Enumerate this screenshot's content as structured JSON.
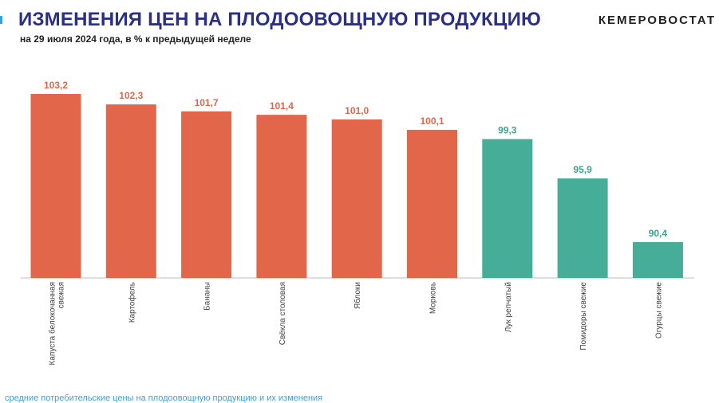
{
  "header": {
    "title": "ИЗМЕНЕНИЯ ЦЕН НА ПЛОДООВОЩНУЮ ПРОДУКЦИЮ",
    "subtitle": "на 29 июля 2024 года, в % к предыдущей неделе",
    "brand": "КЕМЕРОВОСТАТ"
  },
  "footer": {
    "text": "средние потребительские цены на плодоовощную продукцию и их изменения"
  },
  "colors": {
    "increase": "#e2664a",
    "decrease": "#45ad98",
    "increase_label": "#e2664a",
    "decrease_label": "#3aa58f",
    "title": "#2c2f86"
  },
  "chart_data": {
    "type": "bar",
    "title": "ИЗМЕНЕНИЯ ЦЕН НА ПЛОДООВОЩНУЮ ПРОДУКЦИЮ",
    "xlabel": "",
    "ylabel": "",
    "categories": [
      [
        "Капуста белокочанная",
        "свежая"
      ],
      [
        "Картофель"
      ],
      [
        "Бананы"
      ],
      [
        "Свёкла столовая"
      ],
      [
        "Яблоки"
      ],
      [
        "Морковь"
      ],
      [
        "Лук репчатый"
      ],
      [
        "Помидоры свежие"
      ],
      [
        "Огурцы свежие"
      ]
    ],
    "values": [
      103.2,
      102.3,
      101.7,
      101.4,
      101.0,
      100.1,
      99.3,
      95.9,
      90.4
    ],
    "value_labels": [
      "103,2",
      "102,3",
      "101,7",
      "101,4",
      "101,0",
      "100,1",
      "99,3",
      "95,9",
      "90,4"
    ],
    "ylim": [
      87.3,
      103.2
    ],
    "grid": false,
    "legend": "none"
  }
}
